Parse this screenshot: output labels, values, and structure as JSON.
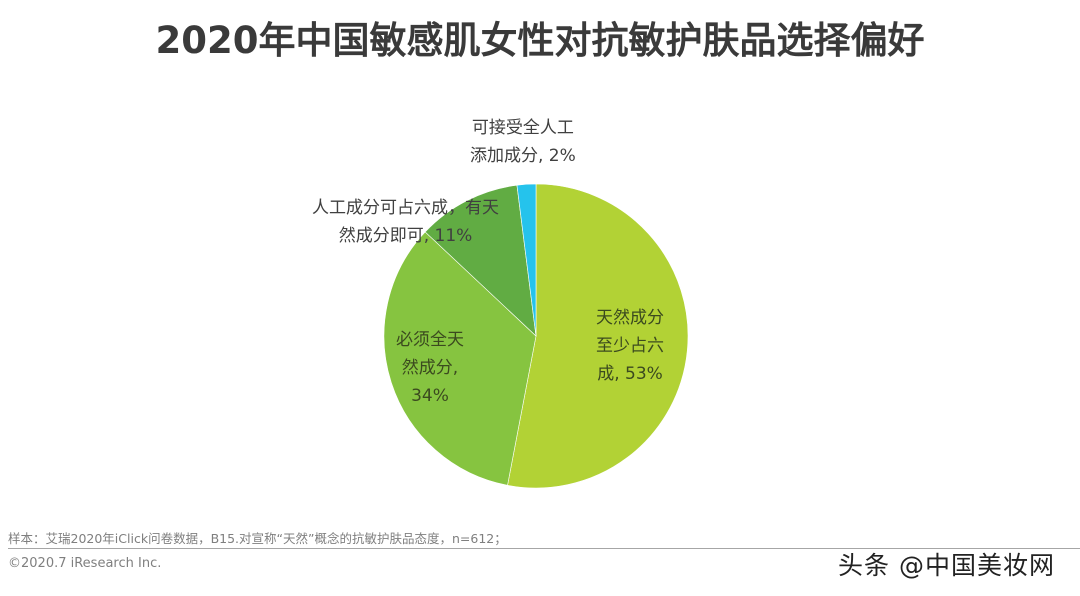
{
  "title": "2020年中国敏感肌女性对抗敏护肤品选择偏好",
  "chart_data": {
    "type": "pie",
    "title": "2020年中国敏感肌女性对抗敏护肤品选择偏好",
    "categories": [
      "天然成分至少占六成",
      "必须全天然成分",
      "人工成分可占六成，有天然成分即可",
      "可接受全人工添加成分"
    ],
    "values": [
      53,
      34,
      11,
      2
    ],
    "unit": "%",
    "colors": [
      "#b2d235",
      "#86c440",
      "#61ac43",
      "#25c3ec"
    ],
    "start_angle_deg": 0,
    "direction": "clockwise",
    "legend": "none",
    "labels": [
      {
        "lines": [
          "天然成分",
          "至少占六",
          "成, 53%"
        ],
        "position": "inside"
      },
      {
        "lines": [
          "必须全天",
          "然成分,",
          "34%"
        ],
        "position": "inside"
      },
      {
        "lines": [
          "人工成分可占六成，有天",
          "然成分即可, 11%"
        ],
        "position": "outside"
      },
      {
        "lines": [
          "可接受全人工",
          "添加成分, 2%"
        ],
        "position": "outside"
      }
    ]
  },
  "footer": {
    "note": "样本：艾瑞2020年iClick问卷数据，B15.对宣称“天然”概念的抗敏护肤品态度，n=612；",
    "copyright": "©2020.7 iResearch Inc.",
    "watermark": "头条 @中国美妆网"
  }
}
